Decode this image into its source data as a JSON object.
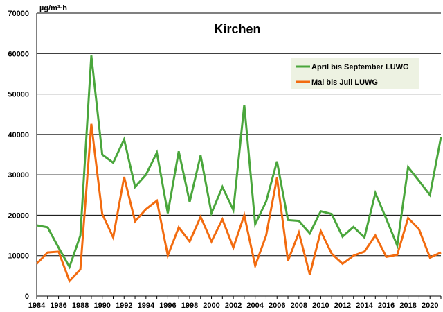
{
  "chart_data": {
    "type": "line",
    "title": "Kirchen",
    "ylabel": "µg/m³·h",
    "xlabel": "",
    "ylim": [
      0,
      70000
    ],
    "xlim": [
      1984,
      2021
    ],
    "grid": true,
    "legend_position": "top-right",
    "y_ticks": [
      0,
      10000,
      20000,
      30000,
      40000,
      50000,
      60000,
      70000
    ],
    "x_ticks": [
      1984,
      1986,
      1988,
      1990,
      1992,
      1994,
      1996,
      1998,
      2000,
      2002,
      2004,
      2006,
      2008,
      2010,
      2012,
      2014,
      2016,
      2018,
      2020
    ],
    "x": [
      1984,
      1985,
      1986,
      1987,
      1988,
      1989,
      1990,
      1991,
      1992,
      1993,
      1994,
      1995,
      1996,
      1997,
      1998,
      1999,
      2000,
      2001,
      2002,
      2003,
      2004,
      2005,
      2006,
      2007,
      2008,
      2009,
      2010,
      2011,
      2012,
      2013,
      2014,
      2015,
      2016,
      2017,
      2018,
      2019,
      2020,
      2021
    ],
    "series": [
      {
        "name": "April bis September LUWG",
        "color": "#4aa63c",
        "values": [
          17500,
          17000,
          12000,
          7200,
          15000,
          59500,
          35000,
          33000,
          38800,
          27000,
          30000,
          35500,
          20500,
          35800,
          23300,
          34800,
          20500,
          27000,
          21300,
          47300,
          17800,
          23400,
          33300,
          18800,
          18600,
          15500,
          21000,
          20300,
          14700,
          17100,
          14500,
          25500,
          19100,
          12500,
          31900,
          28500,
          25000,
          39300
        ]
      },
      {
        "name": "Mai bis Juli LUWG",
        "color": "#f26b0f",
        "values": [
          8000,
          10800,
          11000,
          3700,
          6600,
          42600,
          20300,
          14500,
          29500,
          18500,
          21500,
          23600,
          10000,
          17000,
          13500,
          19600,
          13500,
          19000,
          12000,
          20000,
          7500,
          15000,
          29300,
          8700,
          15700,
          5300,
          16100,
          10500,
          8000,
          10000,
          11000,
          15000,
          9700,
          10200,
          19300,
          16500,
          9500,
          10800
        ]
      }
    ]
  }
}
